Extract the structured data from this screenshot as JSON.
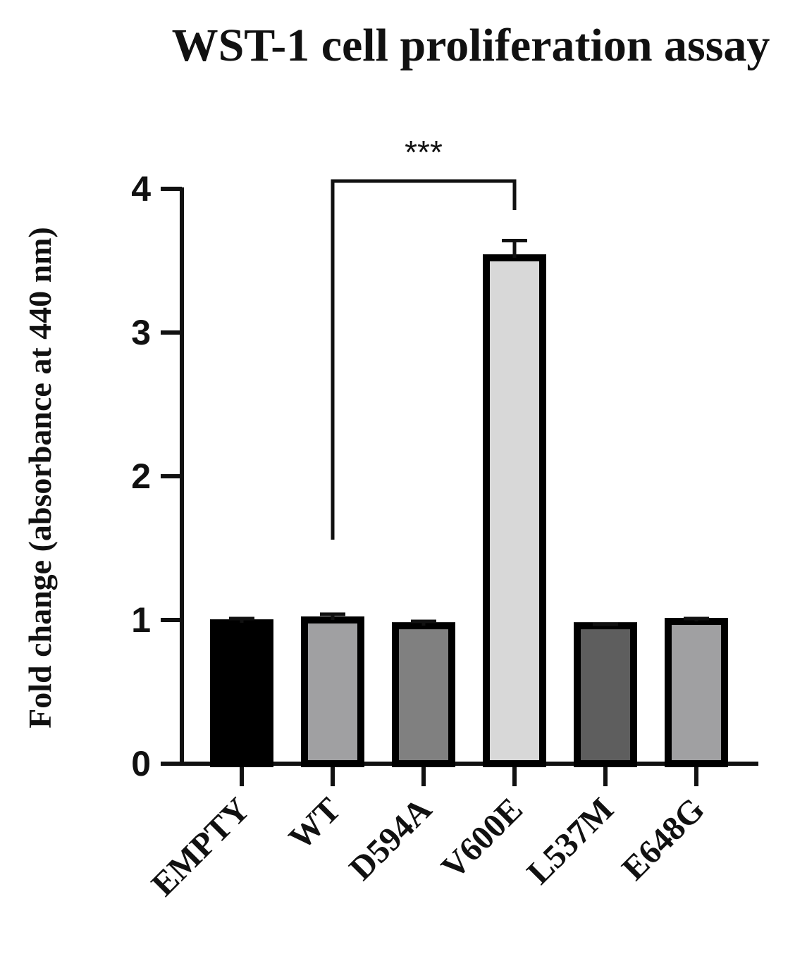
{
  "chart_data": {
    "type": "bar",
    "title": "WST-1 cell proliferation assay",
    "xlabel": "",
    "ylabel": "Fold change (absorbance at 440 nm)",
    "categories": [
      "EMPTY",
      "WT",
      "D594A",
      "V600E",
      "L537M",
      "E648G"
    ],
    "values": [
      0.98,
      1.0,
      0.96,
      3.52,
      0.96,
      0.99
    ],
    "errors": [
      0.03,
      0.04,
      0.03,
      0.12,
      0.01,
      0.02
    ],
    "colors": [
      "#000000",
      "#a0a0a2",
      "#808080",
      "#d8d8d8",
      "#5e5e5e",
      "#a0a0a2"
    ],
    "ylim": [
      0,
      4
    ],
    "yticks": [
      "0",
      "1",
      "2",
      "3",
      "4"
    ],
    "grid": false,
    "significance": {
      "from": "WT",
      "to": "V600E",
      "label": "***"
    }
  }
}
